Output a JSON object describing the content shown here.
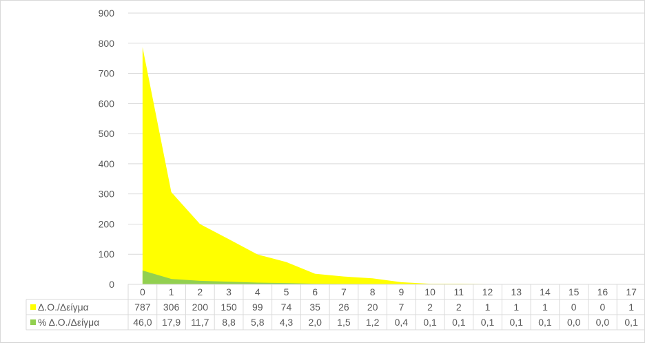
{
  "chart_data": {
    "type": "area",
    "stacked": false,
    "title": "",
    "xlabel": "",
    "ylabel": "",
    "ylim": [
      0,
      900
    ],
    "yticks": [
      0,
      100,
      200,
      300,
      400,
      500,
      600,
      700,
      800,
      900
    ],
    "grid": true,
    "legend": "data-table",
    "categories": [
      "0",
      "1",
      "2",
      "3",
      "4",
      "5",
      "6",
      "7",
      "8",
      "9",
      "10",
      "11",
      "12",
      "13",
      "14",
      "15",
      "16",
      "17"
    ],
    "series": [
      {
        "name": "Δ.Ο./Δείγμα",
        "color": "#ffff00",
        "values": [
          787,
          306,
          200,
          150,
          99,
          74,
          35,
          26,
          20,
          7,
          2,
          2,
          1,
          1,
          1,
          0,
          0,
          1
        ],
        "labels": [
          "787",
          "306",
          "200",
          "150",
          "99",
          "74",
          "35",
          "26",
          "20",
          "7",
          "2",
          "2",
          "1",
          "1",
          "1",
          "0",
          "0",
          "1"
        ]
      },
      {
        "name": "% Δ.Ο./Δείγμα",
        "color": "#92d050",
        "values": [
          46.0,
          17.9,
          11.7,
          8.8,
          5.8,
          4.3,
          2.0,
          1.5,
          1.2,
          0.4,
          0.1,
          0.1,
          0.1,
          0.1,
          0.1,
          0.0,
          0.0,
          0.1
        ],
        "labels": [
          "46,0",
          "17,9",
          "11,7",
          "8,8",
          "5,8",
          "4,3",
          "2,0",
          "1,5",
          "1,2",
          "0,4",
          "0,1",
          "0,1",
          "0,1",
          "0,1",
          "0,1",
          "0,0",
          "0,0",
          "0,1"
        ]
      }
    ]
  }
}
